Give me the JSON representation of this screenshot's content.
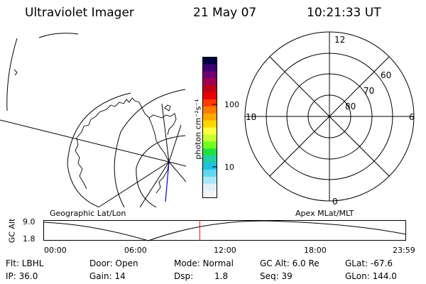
{
  "header": {
    "title": "Ultraviolet Imager",
    "date": "21 May 07",
    "time": "10:21:33 UT"
  },
  "colorbar": {
    "unit_label": "photon cm⁻²s⁻¹",
    "ticks": [
      "100",
      "10"
    ],
    "colors": [
      "#000040",
      "#3a0070",
      "#700070",
      "#a00050",
      "#c00018",
      "#e80000",
      "#ff3a00",
      "#ff7a00",
      "#ffa800",
      "#ffd500",
      "#ffff40",
      "#c8ff30",
      "#70ff20",
      "#20e040",
      "#20d0a0",
      "#20c0e0",
      "#60d8f0",
      "#a8e8f8",
      "#e0f0f8",
      "#f4f4f4"
    ]
  },
  "polar_plot": {
    "mlt_labels": [
      "12",
      "18",
      "6",
      "0"
    ],
    "lat_labels": [
      "60",
      "70",
      "80"
    ]
  },
  "map_labels": {
    "left": "Geographic Lat/Lon",
    "right": "Apex MLat/MLT"
  },
  "altitude_plot": {
    "ylabel": "GC Alt",
    "yticks": [
      "9.0",
      "1.8"
    ],
    "xticks": [
      "00:00",
      "06:00",
      "12:00",
      "18:00",
      "23:59"
    ],
    "current_time_hours": 10.35
  },
  "footer": {
    "filter": "Flt: LBHL",
    "door": "Door: Open",
    "mode": "Mode: Normal",
    "gc_alt": "GC Alt: 6.0 Re",
    "glat": "GLat: -67.6",
    "ip": "IP: 36.0",
    "gain": "Gain: 14",
    "dsp_label": "Dsp:",
    "dsp_value": "1.8",
    "seq": "Seq: 39",
    "glon": "GLon: 144.0"
  }
}
